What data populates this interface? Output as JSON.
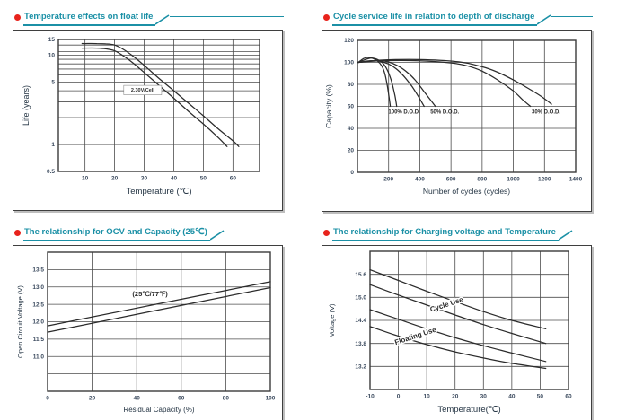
{
  "theme": {
    "accent_teal": "#1b90a6",
    "bullet_red": "#e8231c",
    "grid_color": "#4d4d4d",
    "frame_color": "#3a3a3a",
    "curve_color": "#2b2b2b",
    "tick_color": "#3b4a5e",
    "axis_label_color": "#263645"
  },
  "panels": [
    {
      "id": "float-life",
      "title": "Temperature effects on float life",
      "chart_data": {
        "type": "line",
        "yscale": "log",
        "xlabel": "Temperature (℃)",
        "ylabel": "Life (years)",
        "xlim": [
          1,
          69
        ],
        "ylim": [
          0.5,
          15
        ],
        "grid": true,
        "x_gridlines": [
          10,
          20,
          30,
          40,
          50,
          60
        ],
        "y_gridlines": [
          1,
          2,
          3,
          4,
          5,
          6,
          7,
          8,
          9,
          10,
          11,
          12,
          13
        ],
        "x_ticks": [
          {
            "v": 10,
            "label": "10"
          },
          {
            "v": 20,
            "label": "20"
          },
          {
            "v": 30,
            "label": "30"
          },
          {
            "v": 40,
            "label": "40"
          },
          {
            "v": 50,
            "label": "50"
          },
          {
            "v": 60,
            "label": "60"
          }
        ],
        "y_ticks": [
          {
            "v": 15,
            "label": "15"
          },
          {
            "v": 10,
            "label": "10"
          },
          {
            "v": 5,
            "label": "5"
          },
          {
            "v": 1,
            "label": "1"
          },
          {
            "v": 0.5,
            "label": "0.5"
          }
        ],
        "series": [
          {
            "name": "float-life-upper",
            "points": [
              [
                9,
                13.5
              ],
              [
                14,
                13.5
              ],
              [
                17,
                13.4
              ],
              [
                20,
                13
              ],
              [
                23,
                11.6
              ],
              [
                26,
                9.9
              ],
              [
                30,
                7.7
              ],
              [
                35,
                5.5
              ],
              [
                40,
                4
              ],
              [
                45,
                2.9
              ],
              [
                50,
                2.1
              ],
              [
                55,
                1.5
              ],
              [
                60,
                1.1
              ],
              [
                62,
                0.95
              ]
            ]
          },
          {
            "name": "float-life-lower",
            "points": [
              [
                9,
                12
              ],
              [
                14,
                12
              ],
              [
                17,
                11.8
              ],
              [
                20,
                11.2
              ],
              [
                23,
                9.8
              ],
              [
                26,
                8.3
              ],
              [
                30,
                6.4
              ],
              [
                35,
                4.6
              ],
              [
                40,
                3.3
              ],
              [
                45,
                2.35
              ],
              [
                50,
                1.7
              ],
              [
                55,
                1.2
              ],
              [
                58,
                0.95
              ]
            ]
          }
        ],
        "annotations": [
          {
            "text": "2.30V/Cell",
            "x": 29.5,
            "y": 4.1,
            "boxed": true
          }
        ]
      }
    },
    {
      "id": "cycle-life",
      "title": "Cycle service life in relation to depth of discharge",
      "chart_data": {
        "type": "line",
        "yscale": "linear",
        "xlabel": "Number of cycles (cycles)",
        "ylabel": "Capacity  (%)",
        "xlim": [
          0,
          1400
        ],
        "ylim": [
          0,
          120
        ],
        "grid": true,
        "x_gridlines": [
          200,
          400,
          600,
          800,
          1000,
          1200
        ],
        "y_gridlines": [
          20,
          40,
          60,
          80,
          100
        ],
        "x_ticks": [
          {
            "v": 200,
            "label": "200"
          },
          {
            "v": 400,
            "label": "400"
          },
          {
            "v": 600,
            "label": "600"
          },
          {
            "v": 800,
            "label": "800"
          },
          {
            "v": 1000,
            "label": "1000"
          },
          {
            "v": 1200,
            "label": "1200"
          },
          {
            "v": 1400,
            "label": "1400"
          }
        ],
        "y_ticks": [
          {
            "v": 0,
            "label": "0"
          },
          {
            "v": 20,
            "label": "20"
          },
          {
            "v": 40,
            "label": "40"
          },
          {
            "v": 60,
            "label": "60"
          },
          {
            "v": 80,
            "label": "80"
          },
          {
            "v": 100,
            "label": "100"
          },
          {
            "v": 120,
            "label": "120"
          }
        ],
        "series": [
          {
            "name": "dod-100-a",
            "points": [
              [
                5,
                100
              ],
              [
                40,
                103.5
              ],
              [
                70,
                104.5
              ],
              [
                100,
                103.5
              ],
              [
                130,
                101
              ],
              [
                155,
                97
              ],
              [
                175,
                90
              ],
              [
                190,
                80
              ],
              [
                202,
                69
              ],
              [
                211,
                60
              ]
            ]
          },
          {
            "name": "dod-100-b",
            "points": [
              [
                5,
                100
              ],
              [
                50,
                102.5
              ],
              [
                90,
                104
              ],
              [
                130,
                102.5
              ],
              [
                165,
                99
              ],
              [
                195,
                92
              ],
              [
                220,
                82
              ],
              [
                240,
                70
              ],
              [
                252,
                60
              ]
            ]
          },
          {
            "name": "dod-50-a",
            "points": [
              [
                5,
                100
              ],
              [
                80,
                101.5
              ],
              [
                140,
                101
              ],
              [
                200,
                98.5
              ],
              [
                250,
                94
              ],
              [
                300,
                87
              ],
              [
                350,
                78
              ],
              [
                395,
                68
              ],
              [
                428,
                60
              ]
            ]
          },
          {
            "name": "dod-50-b",
            "points": [
              [
                5,
                100
              ],
              [
                100,
                101.5
              ],
              [
                180,
                101
              ],
              [
                250,
                97.5
              ],
              [
                310,
                92
              ],
              [
                370,
                84
              ],
              [
                430,
                73
              ],
              [
                500,
                60
              ]
            ]
          },
          {
            "name": "dod-30-a",
            "points": [
              [
                5,
                100
              ],
              [
                150,
                101.5
              ],
              [
                400,
                101.5
              ],
              [
                600,
                99.5
              ],
              [
                700,
                97
              ],
              [
                800,
                92
              ],
              [
                900,
                84
              ],
              [
                1000,
                74
              ],
              [
                1060,
                66
              ],
              [
                1110,
                60
              ]
            ]
          },
          {
            "name": "dod-30-b",
            "points": [
              [
                5,
                100
              ],
              [
                150,
                102
              ],
              [
                400,
                102.5
              ],
              [
                650,
                100.5
              ],
              [
                800,
                96
              ],
              [
                900,
                91
              ],
              [
                1000,
                84
              ],
              [
                1100,
                76
              ],
              [
                1180,
                69
              ],
              [
                1245,
                62
              ]
            ]
          }
        ],
        "annotations": [
          {
            "text": "100% D.O.D.",
            "x": 300,
            "y": 55
          },
          {
            "text": "50% D.O.D.",
            "x": 560,
            "y": 55
          },
          {
            "text": "30% D.O.D.",
            "x": 1210,
            "y": 55
          }
        ]
      }
    },
    {
      "id": "ocv-capacity",
      "title": "The relationship  for OCV and Capacity (25℃)",
      "chart_data": {
        "type": "line",
        "yscale": "linear",
        "xlabel": "Residual Capacity (%)",
        "ylabel": "Open Circuit Voltage (V)",
        "xlim": [
          0,
          100
        ],
        "ylim": [
          10,
          14
        ],
        "grid": true,
        "x_gridlines": [
          20,
          40,
          60,
          80
        ],
        "y_gridlines": [
          10.5,
          11,
          11.5,
          12,
          12.5,
          13,
          13.5
        ],
        "x_ticks": [
          {
            "v": 0,
            "label": "0"
          },
          {
            "v": 20,
            "label": "20"
          },
          {
            "v": 40,
            "label": "40"
          },
          {
            "v": 60,
            "label": "60"
          },
          {
            "v": 80,
            "label": "80"
          },
          {
            "v": 100,
            "label": "100"
          }
        ],
        "y_ticks": [
          {
            "v": 13.5,
            "label": "13.5"
          },
          {
            "v": 13,
            "label": "13.0"
          },
          {
            "v": 12.5,
            "label": "12.5"
          },
          {
            "v": 12,
            "label": "12.0"
          },
          {
            "v": 11.5,
            "label": "11.5"
          },
          {
            "v": 11,
            "label": "11.0"
          }
        ],
        "series": [
          {
            "name": "ocv-upper",
            "points": [
              [
                0,
                11.88
              ],
              [
                50,
                12.52
              ],
              [
                100,
                13.15
              ]
            ]
          },
          {
            "name": "ocv-lower",
            "points": [
              [
                0,
                11.7
              ],
              [
                50,
                12.34
              ],
              [
                100,
                12.98
              ]
            ]
          }
        ],
        "annotations": [
          {
            "text": "(25℃/77℉)",
            "x": 46,
            "y": 12.8,
            "halo": true
          }
        ]
      }
    },
    {
      "id": "charge-voltage",
      "title": "The relationship for Charging voltage and Temperature",
      "chart_data": {
        "type": "line",
        "yscale": "linear",
        "xlabel": "Temperature(℃)",
        "ylabel": "Voltage (V)",
        "xlim": [
          -10,
          60
        ],
        "ylim": [
          12.6,
          16.2
        ],
        "grid": true,
        "x_gridlines": [
          0,
          10,
          20,
          30,
          40,
          50
        ],
        "y_gridlines": [
          13.2,
          13.8,
          14.4,
          15,
          15.6
        ],
        "x_ticks": [
          {
            "v": -10,
            "label": "-10"
          },
          {
            "v": 0,
            "label": "0"
          },
          {
            "v": 10,
            "label": "10"
          },
          {
            "v": 20,
            "label": "20"
          },
          {
            "v": 30,
            "label": "30"
          },
          {
            "v": 40,
            "label": "40"
          },
          {
            "v": 50,
            "label": "50"
          },
          {
            "v": 60,
            "label": "60"
          }
        ],
        "y_ticks": [
          {
            "v": 15.6,
            "label": "15.6"
          },
          {
            "v": 15,
            "label": "15.0"
          },
          {
            "v": 14.4,
            "label": "14.4"
          },
          {
            "v": 13.8,
            "label": "13.8"
          },
          {
            "v": 13.2,
            "label": "13.2"
          }
        ],
        "series": [
          {
            "name": "cycle-use-upper",
            "points": [
              [
                -10,
                15.72
              ],
              [
                0,
                15.44
              ],
              [
                10,
                15.16
              ],
              [
                20,
                14.89
              ],
              [
                30,
                14.63
              ],
              [
                40,
                14.4
              ],
              [
                52,
                14.18
              ]
            ]
          },
          {
            "name": "cycle-use-lower",
            "points": [
              [
                -10,
                15.33
              ],
              [
                0,
                15.06
              ],
              [
                10,
                14.8
              ],
              [
                20,
                14.54
              ],
              [
                30,
                14.29
              ],
              [
                40,
                14.06
              ],
              [
                52,
                13.8
              ]
            ]
          },
          {
            "name": "floating-use-upper",
            "points": [
              [
                -10,
                14.68
              ],
              [
                0,
                14.43
              ],
              [
                10,
                14.18
              ],
              [
                20,
                13.95
              ],
              [
                30,
                13.74
              ],
              [
                40,
                13.55
              ],
              [
                52,
                13.33
              ]
            ]
          },
          {
            "name": "floating-use-lower",
            "points": [
              [
                -10,
                14.24
              ],
              [
                0,
                13.99
              ],
              [
                10,
                13.77
              ],
              [
                20,
                13.58
              ],
              [
                30,
                13.42
              ],
              [
                40,
                13.28
              ],
              [
                52,
                13.15
              ]
            ]
          }
        ],
        "annotations": [
          {
            "text": "Cycle Use",
            "x": 17,
            "y": 14.82,
            "rotate": -18,
            "halo": true
          },
          {
            "text": "Floating Use",
            "x": 6,
            "y": 14.0,
            "rotate": -18,
            "halo": true
          }
        ]
      }
    }
  ]
}
